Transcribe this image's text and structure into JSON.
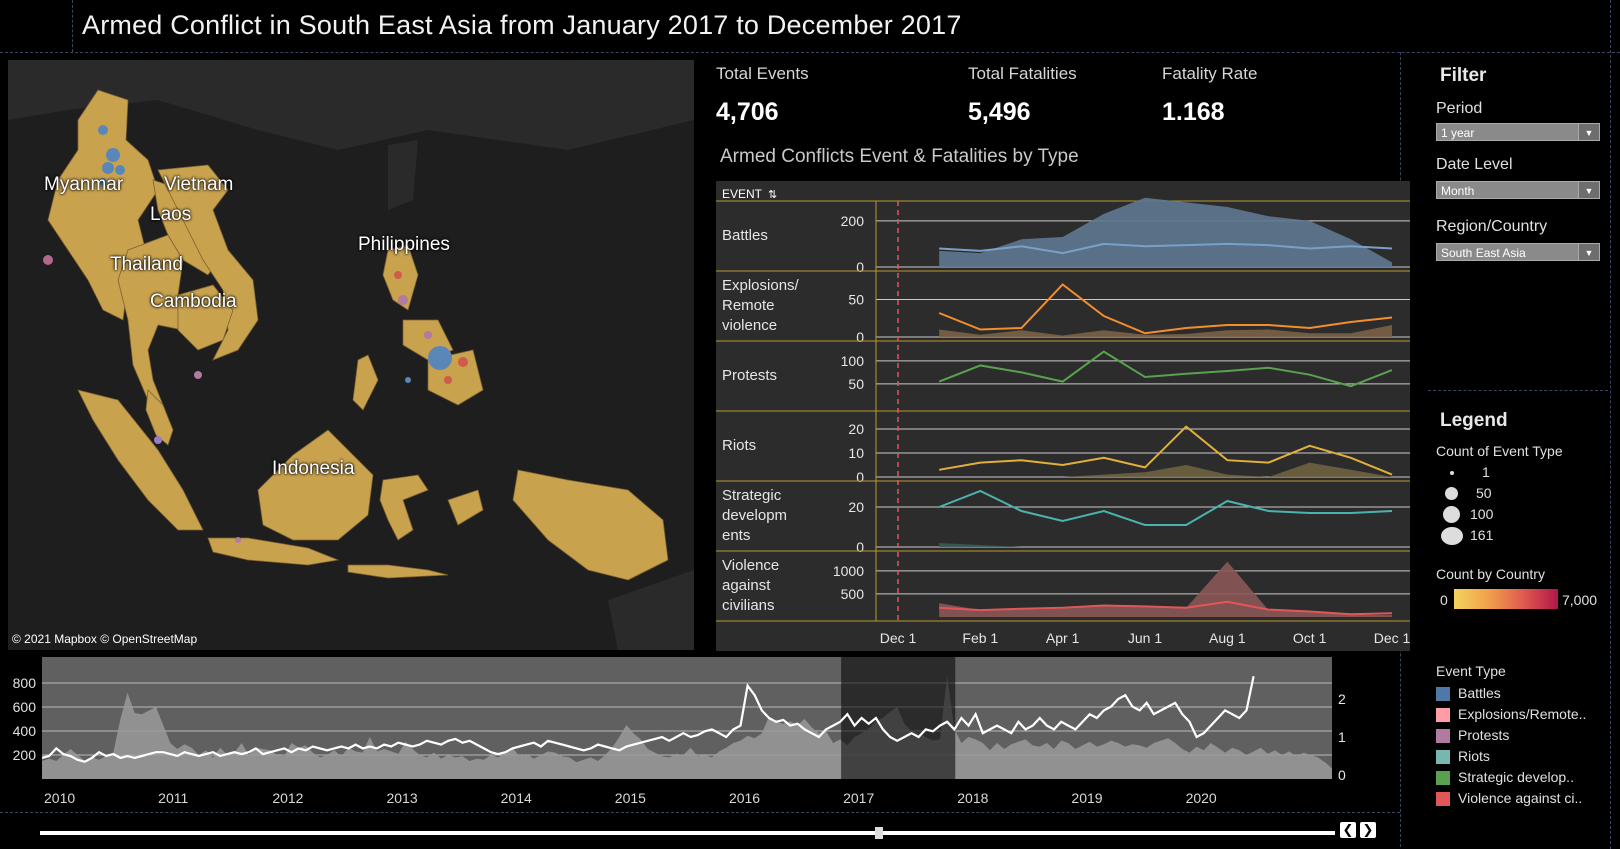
{
  "title": "Armed Conflict in South East Asia from January 2017 to December 2017",
  "map": {
    "credit": "© 2021 Mapbox © OpenStreetMap",
    "labels": [
      "Myanmar",
      "Vietnam",
      "Laos",
      "Thailand",
      "Cambodia",
      "Philippines",
      "Indonesia"
    ],
    "land_color": "#c9a24e",
    "sea_color": "#1e1e1e"
  },
  "kpis": {
    "events_label": "Total Events",
    "events_value": "4,706",
    "fatalities_label": "Total Fatalities",
    "fatalities_value": "5,496",
    "rate_label": "Fatality Rate",
    "rate_value": "1.168"
  },
  "small_multiples_title": "Armed Conflicts Event & Fatalities by Type",
  "event_header": "EVENT",
  "filter": {
    "heading": "Filter",
    "period_label": "Period",
    "period_value": "1 year",
    "date_level_label": "Date Level",
    "date_level_value": "Month",
    "region_label": "Region/Country",
    "region_value": "South East Asia"
  },
  "legend": {
    "heading": "Legend",
    "size_title": "Count of Event Type",
    "size_values": [
      "1",
      "50",
      "100",
      "161"
    ],
    "color_title": "Count by Country",
    "color_min": "0",
    "color_max": "7,000",
    "event_type_title": "Event Type",
    "event_types": [
      {
        "label": "Battles",
        "color": "#4e79a7"
      },
      {
        "label": "Explosions/Remote..",
        "color": "#ff9da7"
      },
      {
        "label": "Protests",
        "color": "#b07aa1"
      },
      {
        "label": "Riots",
        "color": "#76b7b2"
      },
      {
        "label": "Strategic develop..",
        "color": "#59a14f"
      },
      {
        "label": "Violence against ci..",
        "color": "#e15759"
      }
    ]
  },
  "chart_data": [
    {
      "type": "line",
      "title": "Armed Conflicts Event & Fatalities by Type",
      "x": [
        "Dec 1",
        "Jan 1",
        "Feb 1",
        "Mar 1",
        "Apr 1",
        "May 1",
        "Jun 1",
        "Jul 1",
        "Aug 1",
        "Sep 1",
        "Oct 1",
        "Nov 1",
        "Dec 1"
      ],
      "x_ticks": [
        "Dec 1",
        "Feb 1",
        "Apr 1",
        "Jun 1",
        "Aug 1",
        "Oct 1",
        "Dec 1"
      ],
      "reference_line": "Dec 1",
      "rows": [
        {
          "name": "Battles",
          "ticks": [
            "200",
            "0"
          ],
          "ylim": [
            0,
            260
          ],
          "events": [
            null,
            80,
            70,
            90,
            60,
            100,
            90,
            95,
            100,
            95,
            80,
            90,
            80
          ],
          "fatalities": [
            null,
            70,
            60,
            120,
            130,
            230,
            300,
            280,
            260,
            220,
            200,
            120,
            20
          ],
          "color": "#7aa0c8",
          "area_color": "#5e7891"
        },
        {
          "name": "Explosions/ Remote violence",
          "ticks": [
            "50",
            "0"
          ],
          "ylim": [
            0,
            80
          ],
          "events": [
            null,
            32,
            10,
            12,
            70,
            28,
            5,
            12,
            16,
            16,
            12,
            20,
            26
          ],
          "fatalities": [
            null,
            10,
            3,
            9,
            2,
            9,
            3,
            4,
            9,
            10,
            5,
            5,
            16
          ],
          "color": "#f28e2b",
          "area_color": "#7a6246"
        },
        {
          "name": "Protests",
          "ticks": [
            "100",
            "50"
          ],
          "ylim": [
            0,
            130
          ],
          "events": [
            null,
            55,
            90,
            75,
            55,
            120,
            65,
            72,
            78,
            85,
            70,
            45,
            80
          ],
          "fatalities": [
            null,
            0,
            0,
            0,
            0,
            0,
            0,
            0,
            0,
            0,
            0,
            0,
            0
          ],
          "color": "#59a14f",
          "area_color": "#3d5a38"
        },
        {
          "name": "Riots",
          "ticks": [
            "20",
            "10",
            "0"
          ],
          "ylim": [
            0,
            25
          ],
          "events": [
            null,
            3,
            6,
            7,
            5,
            8,
            4,
            21,
            7,
            6,
            13,
            8,
            1
          ],
          "fatalities": [
            null,
            0,
            0,
            0,
            0,
            1,
            2,
            5,
            1,
            0,
            6,
            3,
            0
          ],
          "color": "#e1b03a",
          "area_color": "#6e6240"
        },
        {
          "name": "Strategic developm ents",
          "ticks": [
            "20",
            "0"
          ],
          "ylim": [
            0,
            30
          ],
          "events": [
            null,
            20,
            28,
            18,
            13,
            18,
            11,
            11,
            23,
            18,
            17,
            17,
            18
          ],
          "fatalities": [
            null,
            2,
            1,
            0,
            0,
            0,
            0,
            0,
            0,
            0,
            0,
            0,
            0
          ],
          "color": "#4bb3ad",
          "area_color": "#3a5a57"
        },
        {
          "name": "Violence against civilians",
          "ticks": [
            "1000",
            "500"
          ],
          "ylim": [
            0,
            1300
          ],
          "events": [
            null,
            200,
            150,
            180,
            200,
            250,
            230,
            200,
            330,
            160,
            120,
            60,
            80
          ],
          "fatalities": [
            null,
            300,
            150,
            160,
            180,
            240,
            230,
            200,
            1200,
            150,
            100,
            50,
            40
          ],
          "color": "#e15759",
          "area_color": "#8a5656"
        }
      ]
    },
    {
      "type": "area",
      "title": "Timeline",
      "x_ticks": [
        "2010",
        "2011",
        "2012",
        "2013",
        "2014",
        "2015",
        "2016",
        "2017",
        "2018",
        "2019",
        "2020"
      ],
      "left_ticks": [
        "800",
        "600",
        "400",
        "200"
      ],
      "right_ticks": [
        "2",
        "1",
        "0"
      ],
      "ylim_left": [
        0,
        950
      ],
      "ylim_right": [
        0,
        3
      ],
      "selected_range": [
        "2017",
        "2018"
      ],
      "fatalities": [
        150,
        170,
        150,
        200,
        250,
        200,
        150,
        180,
        160,
        190,
        220,
        500,
        720,
        550,
        540,
        570,
        600,
        450,
        300,
        250,
        290,
        260,
        200,
        240,
        180,
        260,
        200,
        220,
        300,
        200,
        260,
        250,
        240,
        200,
        190,
        300,
        260,
        280,
        220,
        180,
        200,
        240,
        190,
        260,
        230,
        220,
        350,
        230,
        250,
        230,
        210,
        310,
        250,
        200,
        180,
        220,
        170,
        200,
        180,
        190,
        150,
        170,
        160,
        200,
        180,
        220,
        260,
        190,
        210,
        170,
        200,
        230,
        220,
        190,
        180,
        140,
        160,
        180,
        150,
        200,
        260,
        350,
        450,
        380,
        330,
        250,
        220,
        190,
        180,
        210,
        200,
        260,
        190,
        200,
        180,
        230,
        260,
        300,
        320,
        360,
        340,
        380,
        520,
        480,
        460,
        480,
        450,
        500,
        430,
        380,
        400,
        300,
        330,
        280,
        350,
        380,
        420,
        480,
        510,
        560,
        600,
        460,
        400,
        380,
        350,
        320,
        330,
        860,
        420,
        300,
        350,
        330,
        300,
        240,
        300,
        250,
        290,
        310,
        330,
        280,
        270,
        300,
        250,
        320,
        300,
        250,
        280,
        310,
        270,
        290,
        320,
        300,
        270,
        290,
        280,
        260,
        300,
        320,
        340,
        300,
        250,
        220,
        270,
        240,
        300,
        260,
        220,
        260,
        240,
        200,
        230,
        260,
        210,
        240,
        200,
        230,
        190,
        220,
        200,
        180,
        140,
        90
      ],
      "events": [
        0.45,
        0.5,
        0.7,
        0.55,
        0.5,
        0.4,
        0.35,
        0.45,
        0.6,
        0.5,
        0.55,
        0.45,
        0.5,
        0.45,
        0.5,
        0.55,
        0.6,
        0.6,
        0.55,
        0.5,
        0.6,
        0.55,
        0.5,
        0.55,
        0.6,
        0.5,
        0.55,
        0.6,
        0.55,
        0.6,
        0.7,
        0.55,
        0.6,
        0.65,
        0.7,
        0.6,
        0.7,
        0.65,
        0.75,
        0.7,
        0.65,
        0.7,
        0.75,
        0.7,
        0.8,
        0.7,
        0.75,
        0.7,
        0.8,
        0.75,
        0.85,
        0.8,
        0.75,
        0.8,
        0.9,
        0.85,
        0.8,
        0.9,
        0.95,
        0.85,
        0.9,
        0.8,
        0.7,
        0.6,
        0.55,
        0.6,
        0.7,
        0.75,
        0.8,
        0.85,
        0.75,
        0.9,
        0.85,
        0.8,
        0.75,
        0.7,
        0.65,
        0.7,
        0.8,
        0.75,
        0.7,
        0.65,
        0.75,
        0.8,
        0.85,
        0.9,
        0.95,
        1.0,
        0.9,
        1.0,
        1.1,
        1.0,
        1.05,
        1.15,
        1.2,
        1.1,
        1.0,
        1.2,
        1.3,
        2.35,
        2.1,
        1.7,
        1.5,
        1.4,
        1.45,
        1.3,
        1.35,
        1.2,
        1.1,
        1.0,
        1.2,
        1.3,
        1.4,
        1.6,
        1.3,
        1.5,
        1.35,
        1.5,
        1.2,
        1.0,
        0.9,
        1.0,
        1.1,
        1.0,
        1.2,
        1.15,
        1.3,
        1.4,
        1.2,
        1.5,
        1.3,
        1.6,
        1.1,
        1.2,
        1.3,
        1.2,
        1.1,
        1.4,
        1.2,
        1.3,
        1.5,
        1.3,
        1.2,
        1.4,
        1.3,
        1.2,
        1.4,
        1.6,
        1.5,
        1.7,
        1.8,
        2.0,
        2.1,
        1.8,
        1.7,
        1.9,
        1.6,
        1.7,
        1.8,
        1.9,
        1.6,
        1.4,
        1.0,
        1.1,
        1.3,
        1.5,
        1.7,
        1.6,
        1.5,
        1.7,
        2.6
      ]
    }
  ]
}
